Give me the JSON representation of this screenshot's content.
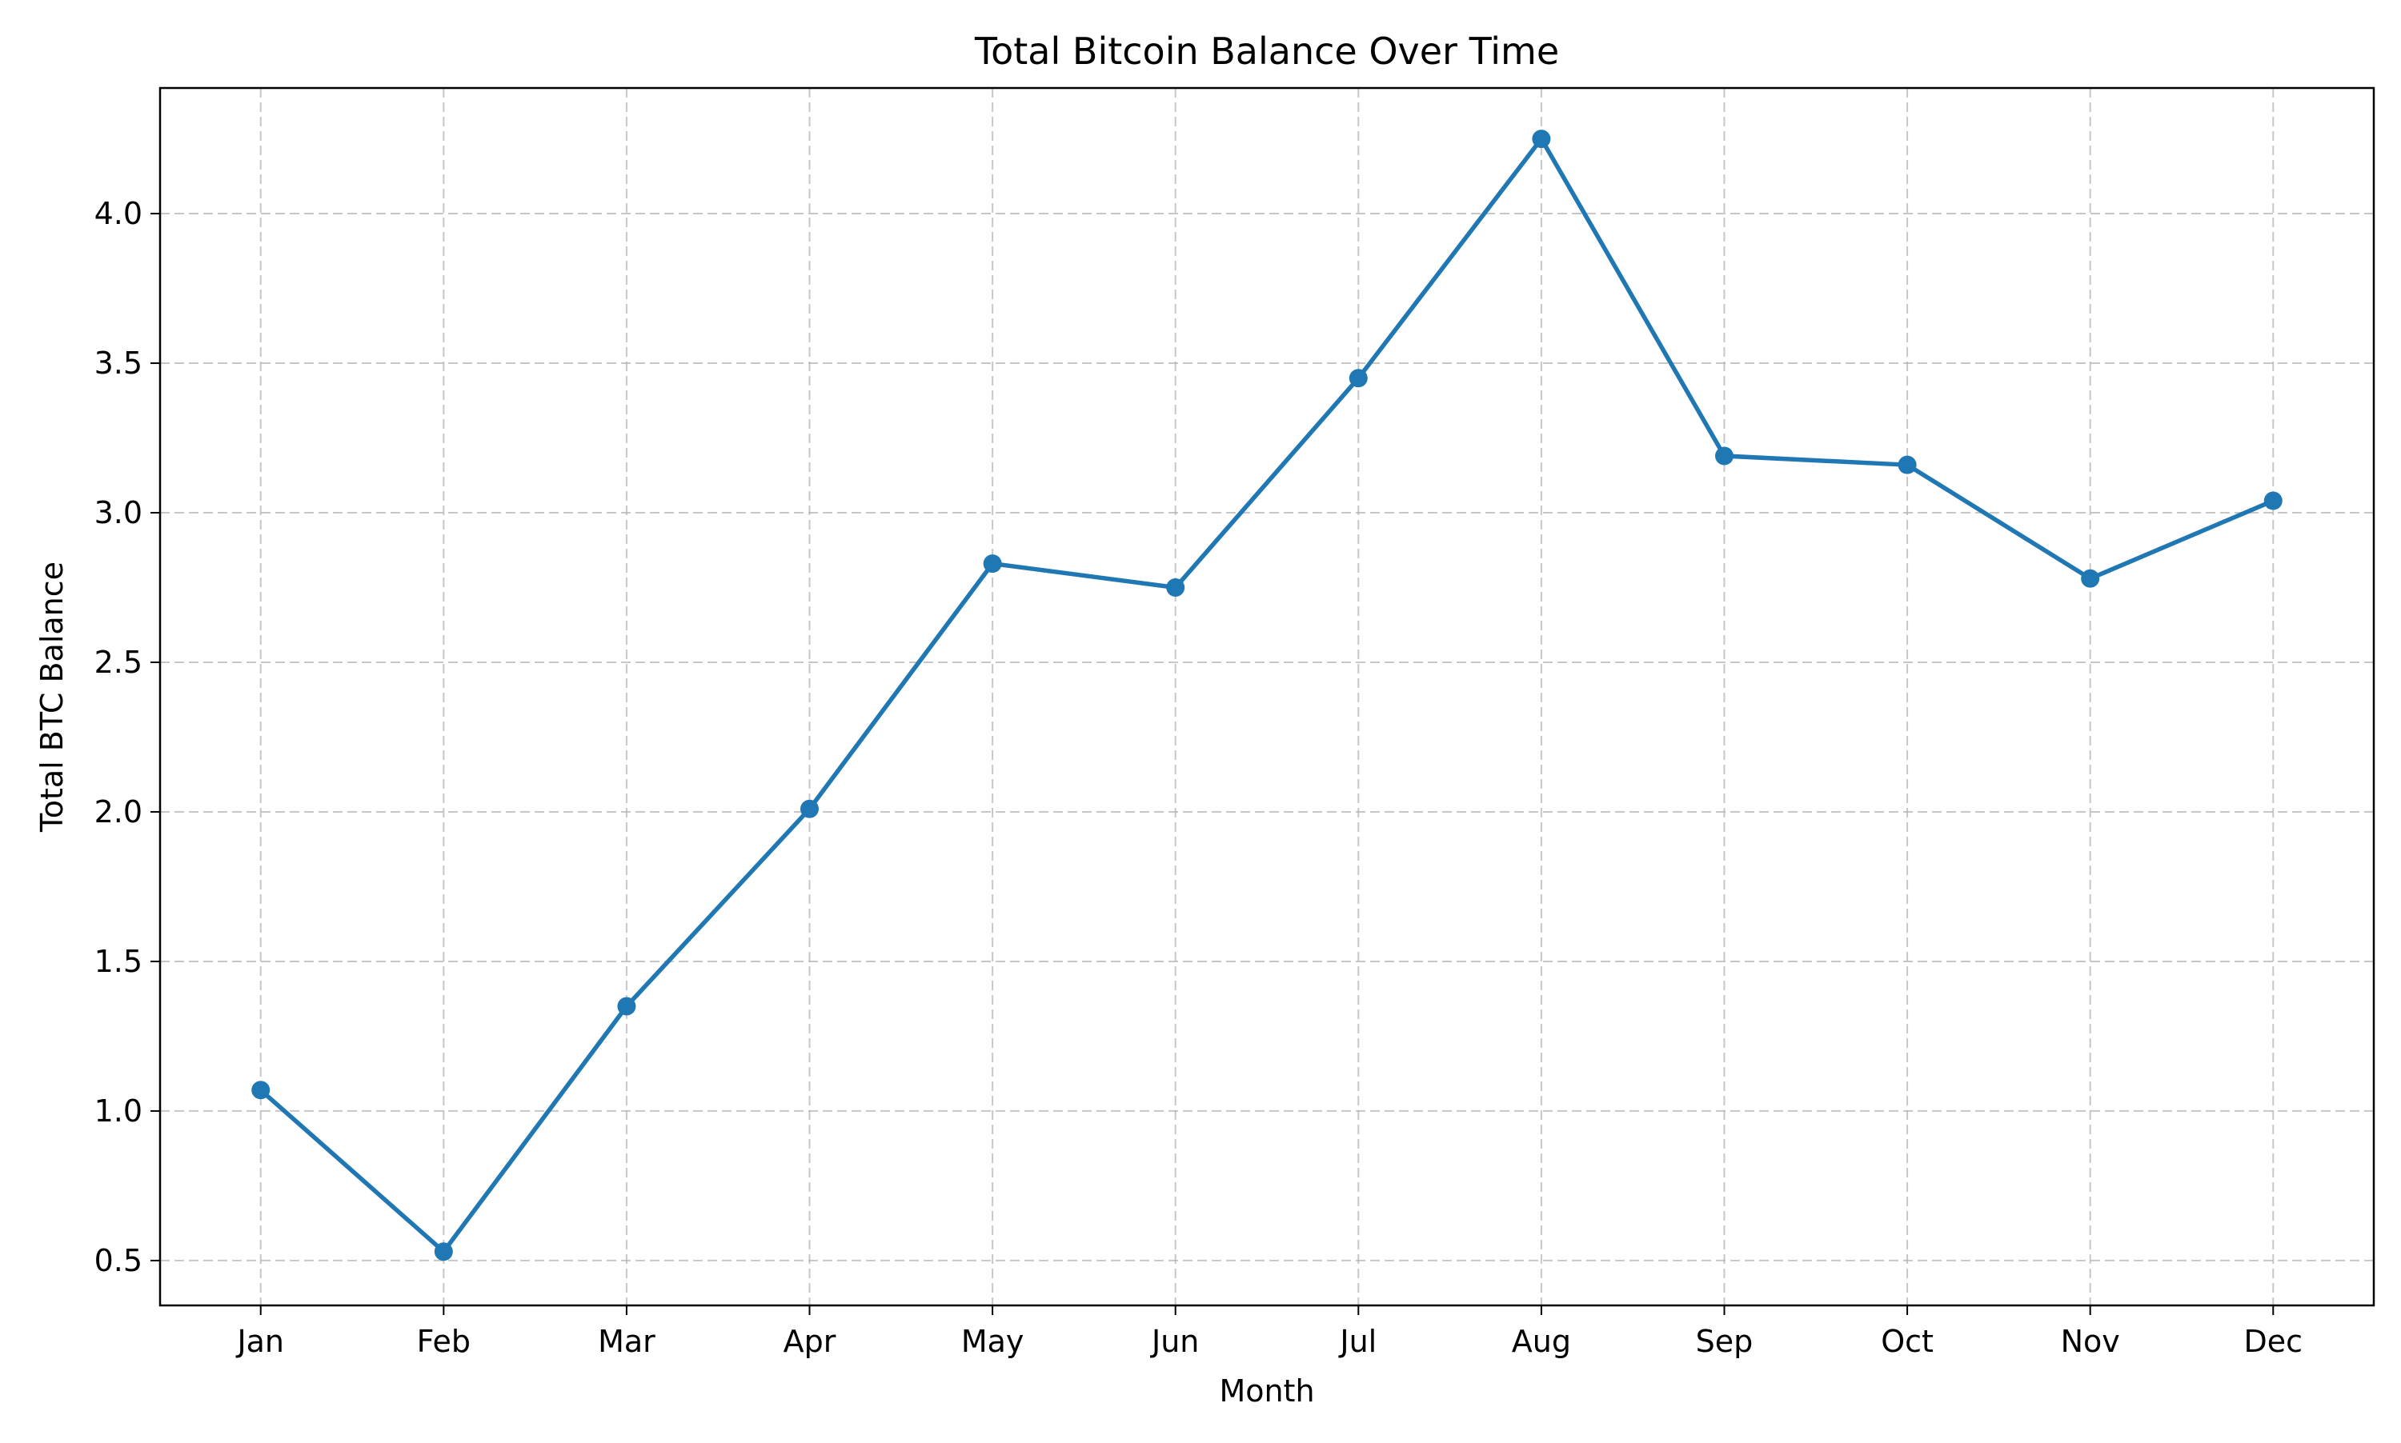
{
  "chart_data": {
    "type": "line",
    "title": "Total Bitcoin Balance Over Time",
    "xlabel": "Month",
    "ylabel": "Total BTC Balance",
    "categories": [
      "Jan",
      "Feb",
      "Mar",
      "Apr",
      "May",
      "Jun",
      "Jul",
      "Aug",
      "Sep",
      "Oct",
      "Nov",
      "Dec"
    ],
    "series": [
      {
        "values": [
          1.07,
          0.53,
          1.35,
          2.01,
          2.83,
          2.75,
          3.45,
          4.25,
          3.19,
          3.16,
          2.78,
          3.04
        ],
        "color": "#1f77b4",
        "marker": "circle"
      }
    ],
    "ylim": [
      0.35,
      4.42
    ],
    "yticks": [
      0.5,
      1.0,
      1.5,
      2.0,
      2.5,
      3.0,
      3.5,
      4.0
    ],
    "ytick_labels": [
      "0.5",
      "1.0",
      "1.5",
      "2.0",
      "2.5",
      "3.0",
      "3.5",
      "4.0"
    ],
    "grid": true,
    "grid_style": "dashed",
    "legend": "none"
  }
}
